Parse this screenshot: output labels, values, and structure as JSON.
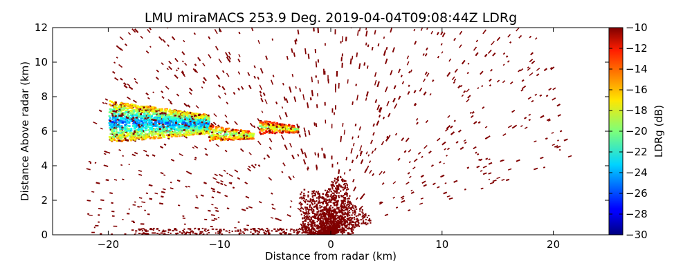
{
  "chart_data": {
    "type": "heatmap",
    "title": "LMU miraMACS 253.9 Deg. 2019-04-04T09:08:44Z  LDRg",
    "xlabel": "Distance from radar (km)",
    "ylabel": "Distance Above radar  (km)",
    "xlim": [
      -25,
      25
    ],
    "ylim": [
      0,
      12
    ],
    "x_ticks": [
      -20,
      -10,
      0,
      10,
      20
    ],
    "x_tick_labels": [
      "−20",
      "−10",
      "0",
      "10",
      "20"
    ],
    "y_ticks": [
      0,
      2,
      4,
      6,
      8,
      10,
      12
    ],
    "y_tick_labels": [
      "0",
      "2",
      "4",
      "6",
      "8",
      "10",
      "12"
    ],
    "colorbar": {
      "label": "LDRg (dB)",
      "range": [
        -30,
        -10
      ],
      "colormap": "jet",
      "ticks": [
        -10,
        -12,
        -14,
        -16,
        -18,
        -20,
        -22,
        -24,
        -26,
        -28,
        -30
      ],
      "tick_labels": [
        "−10",
        "−12",
        "−14",
        "−16",
        "−18",
        "−20",
        "−22",
        "−24",
        "−26",
        "−28",
        "−30"
      ]
    },
    "background_value_db": -10,
    "cloud_layers": [
      {
        "name": "cloud-layer-main",
        "x_range": [
          -20,
          -11
        ],
        "y_range": [
          5.4,
          7.8
        ],
        "ldr_db_range": [
          -28,
          -16
        ]
      },
      {
        "name": "cloud-layer-tail",
        "x_range": [
          -11,
          -7
        ],
        "y_range": [
          5.5,
          6.4
        ],
        "ldr_db_range": [
          -22,
          -14
        ]
      },
      {
        "name": "cloud-layer-right",
        "x_range": [
          -6.5,
          -3
        ],
        "y_range": [
          5.9,
          6.7
        ],
        "ldr_db_range": [
          -22,
          -12
        ]
      }
    ],
    "scan_limits": {
      "max_range_km": 22,
      "right_edge_elevation_deg": 11
    }
  }
}
